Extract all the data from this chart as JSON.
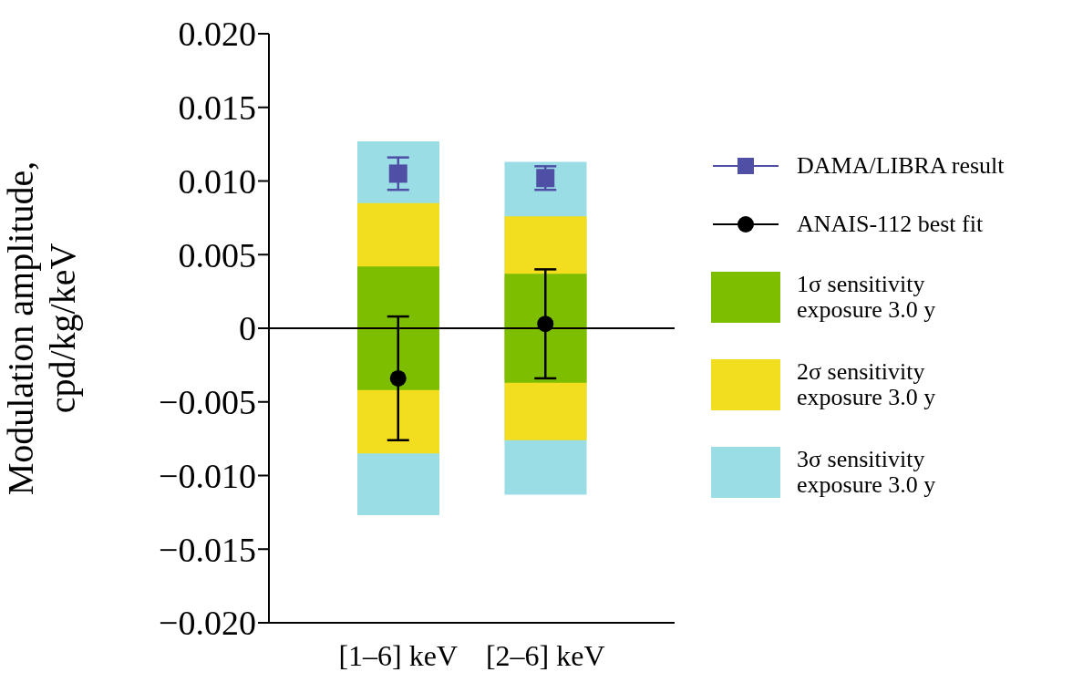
{
  "chart_data": {
    "type": "bar",
    "ylabel": "Modulation amplitude, cpd/kg/keV",
    "categories": [
      "[1–6] keV",
      "[2–6] keV"
    ],
    "ylim": [
      -0.02,
      0.02
    ],
    "yticks": [
      {
        "value": -0.02,
        "label": "−0.020"
      },
      {
        "value": -0.015,
        "label": "−0.015"
      },
      {
        "value": -0.01,
        "label": "−0.010"
      },
      {
        "value": -0.005,
        "label": "−0.005"
      },
      {
        "value": 0,
        "label": "0"
      },
      {
        "value": 0.005,
        "label": "0.005"
      },
      {
        "value": 0.01,
        "label": "0.010"
      },
      {
        "value": 0.015,
        "label": "0.015"
      },
      {
        "value": 0.02,
        "label": "0.020"
      }
    ],
    "legend": "right",
    "grid": false,
    "ref_lines": [
      {
        "axis": "y",
        "value": 0,
        "color": "#000000"
      }
    ],
    "series": [
      {
        "name": "3σ sensitivity exposure 3.0 y",
        "type": "bar",
        "color": "#9bdde5",
        "base": [
          -0.0127,
          -0.0113
        ],
        "values": [
          0.0254,
          0.0226
        ]
      },
      {
        "name": "2σ sensitivity exposure 3.0 y",
        "type": "bar",
        "color": "#f2de1f",
        "base": [
          -0.0085,
          -0.0076
        ],
        "values": [
          0.017,
          0.0152
        ]
      },
      {
        "name": "1σ sensitivity exposure 3.0 y",
        "type": "bar",
        "color": "#7dbf00",
        "base": [
          -0.0042,
          -0.0037
        ],
        "values": [
          0.0084,
          0.0074
        ]
      },
      {
        "name": "ANAIS-112 best fit",
        "type": "scatter",
        "color": "#000000",
        "marker": "circle",
        "values": [
          -0.0034,
          0.0003
        ],
        "errors": [
          0.0042,
          0.0037
        ]
      },
      {
        "name": "DAMA/LIBRA result",
        "type": "scatter",
        "color": "#4f4fa6",
        "marker": "square",
        "values": [
          0.0105,
          0.0102
        ],
        "errors": [
          0.0011,
          0.0008
        ]
      }
    ]
  }
}
